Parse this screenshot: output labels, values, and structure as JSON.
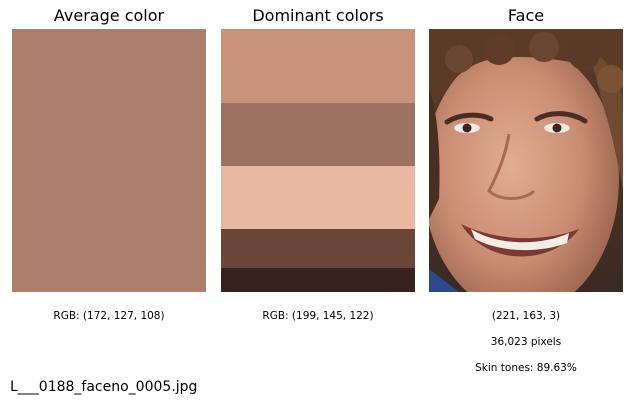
{
  "panels": {
    "average": {
      "title": "Average color",
      "color": "#ac7f6c",
      "caption": "RGB: (172, 127, 108)"
    },
    "dominant": {
      "title": "Dominant colors",
      "caption": "RGB: (199, 145, 122)",
      "colors": [
        {
          "color": "#c7917a",
          "share": 0.28
        },
        {
          "color": "#9e7261",
          "share": 0.24
        },
        {
          "color": "#e8b7a0",
          "share": 0.24
        },
        {
          "color": "#6a4638",
          "share": 0.15
        },
        {
          "color": "#36221d",
          "share": 0.09
        }
      ]
    },
    "face": {
      "title": "Face",
      "caption_rgb": "(221, 163, 3)",
      "caption_pixels": "36,023 pixels",
      "caption_skin": "Skin tones: 89.63%"
    }
  },
  "filename": "L___0188_faceno_0005.jpg"
}
